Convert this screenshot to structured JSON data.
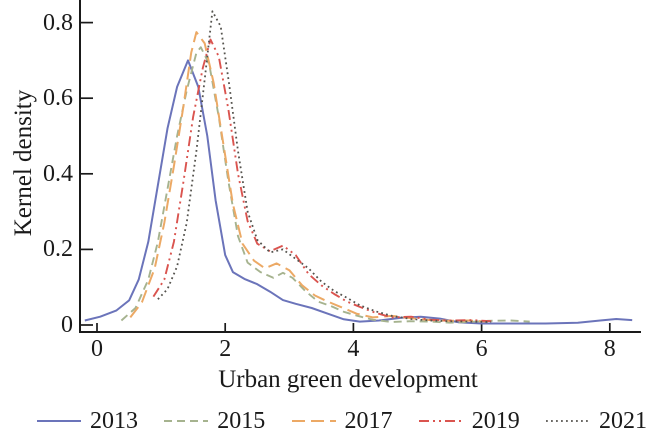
{
  "figure": {
    "background": "#ffffff"
  },
  "chart_data": {
    "type": "line",
    "title": "",
    "xlabel": "Urban green development",
    "ylabel": "Kernel density",
    "xlim": [
      -0.27,
      8.47
    ],
    "ylim": [
      0,
      0.86
    ],
    "grid": false,
    "legend_position": "bottom",
    "axis_color": "#1a1a1a",
    "xticks": [
      {
        "value": 0,
        "label": "0"
      },
      {
        "value": 2,
        "label": "2"
      },
      {
        "value": 4,
        "label": "4"
      },
      {
        "value": 6,
        "label": "6"
      },
      {
        "value": 8,
        "label": "8"
      }
    ],
    "yticks": [
      {
        "value": 0,
        "label": "0"
      },
      {
        "value": 0.2,
        "label": "0.2"
      },
      {
        "value": 0.4,
        "label": "0.4"
      },
      {
        "value": 0.6,
        "label": "0.6"
      },
      {
        "value": 0.8,
        "label": "0.8"
      }
    ],
    "series": [
      {
        "name": "2013",
        "color": "#6b74ba",
        "dash": "",
        "width": 2,
        "points": [
          [
            -0.19,
            0.012
          ],
          [
            0.05,
            0.022
          ],
          [
            0.3,
            0.038
          ],
          [
            0.5,
            0.065
          ],
          [
            0.65,
            0.12
          ],
          [
            0.8,
            0.22
          ],
          [
            0.95,
            0.37
          ],
          [
            1.1,
            0.52
          ],
          [
            1.25,
            0.63
          ],
          [
            1.42,
            0.7
          ],
          [
            1.58,
            0.63
          ],
          [
            1.72,
            0.5
          ],
          [
            1.85,
            0.33
          ],
          [
            2.0,
            0.185
          ],
          [
            2.12,
            0.14
          ],
          [
            2.3,
            0.122
          ],
          [
            2.5,
            0.108
          ],
          [
            2.7,
            0.088
          ],
          [
            2.9,
            0.066
          ],
          [
            3.1,
            0.056
          ],
          [
            3.35,
            0.045
          ],
          [
            3.6,
            0.03
          ],
          [
            3.85,
            0.015
          ],
          [
            4.1,
            0.009
          ],
          [
            4.4,
            0.012
          ],
          [
            4.75,
            0.019
          ],
          [
            5.05,
            0.022
          ],
          [
            5.35,
            0.017
          ],
          [
            5.65,
            0.007
          ],
          [
            6.0,
            0.004
          ],
          [
            6.5,
            0.004
          ],
          [
            7.0,
            0.004
          ],
          [
            7.5,
            0.006
          ],
          [
            7.85,
            0.012
          ],
          [
            8.1,
            0.016
          ],
          [
            8.35,
            0.013
          ]
        ]
      },
      {
        "name": "2015",
        "color": "#a6b38f",
        "dash": "8 5",
        "width": 1.9,
        "points": [
          [
            0.38,
            0.012
          ],
          [
            0.6,
            0.045
          ],
          [
            0.8,
            0.12
          ],
          [
            0.95,
            0.22
          ],
          [
            1.1,
            0.36
          ],
          [
            1.25,
            0.5
          ],
          [
            1.4,
            0.62
          ],
          [
            1.55,
            0.72
          ],
          [
            1.62,
            0.735
          ],
          [
            1.75,
            0.69
          ],
          [
            1.9,
            0.55
          ],
          [
            2.05,
            0.38
          ],
          [
            2.2,
            0.235
          ],
          [
            2.35,
            0.165
          ],
          [
            2.55,
            0.14
          ],
          [
            2.75,
            0.125
          ],
          [
            2.9,
            0.138
          ],
          [
            3.05,
            0.125
          ],
          [
            3.25,
            0.09
          ],
          [
            3.45,
            0.062
          ],
          [
            3.65,
            0.05
          ],
          [
            3.85,
            0.035
          ],
          [
            4.05,
            0.025
          ],
          [
            4.3,
            0.014
          ],
          [
            4.6,
            0.008
          ],
          [
            4.9,
            0.01
          ],
          [
            5.2,
            0.009
          ],
          [
            5.5,
            0.006
          ],
          [
            5.8,
            0.008
          ],
          [
            6.1,
            0.011
          ],
          [
            6.45,
            0.012
          ],
          [
            6.75,
            0.009
          ]
        ]
      },
      {
        "name": "2017",
        "color": "#eca965",
        "dash": "13 6",
        "width": 2,
        "points": [
          [
            0.52,
            0.02
          ],
          [
            0.7,
            0.06
          ],
          [
            0.9,
            0.15
          ],
          [
            1.05,
            0.27
          ],
          [
            1.2,
            0.42
          ],
          [
            1.35,
            0.58
          ],
          [
            1.47,
            0.72
          ],
          [
            1.55,
            0.775
          ],
          [
            1.68,
            0.745
          ],
          [
            1.82,
            0.64
          ],
          [
            1.97,
            0.48
          ],
          [
            2.12,
            0.32
          ],
          [
            2.27,
            0.215
          ],
          [
            2.45,
            0.17
          ],
          [
            2.62,
            0.15
          ],
          [
            2.8,
            0.163
          ],
          [
            3.0,
            0.145
          ],
          [
            3.2,
            0.105
          ],
          [
            3.4,
            0.078
          ],
          [
            3.6,
            0.062
          ],
          [
            3.8,
            0.048
          ],
          [
            4.05,
            0.03
          ],
          [
            4.3,
            0.02
          ],
          [
            4.6,
            0.024
          ],
          [
            4.9,
            0.018
          ],
          [
            5.2,
            0.013
          ],
          [
            5.5,
            0.011
          ],
          [
            5.8,
            0.012
          ],
          [
            6.1,
            0.009
          ]
        ]
      },
      {
        "name": "2019",
        "color": "#da544f",
        "dash": "10 4 2 4 2 4",
        "width": 1.9,
        "points": [
          [
            0.88,
            0.075
          ],
          [
            1.05,
            0.12
          ],
          [
            1.2,
            0.22
          ],
          [
            1.35,
            0.38
          ],
          [
            1.5,
            0.55
          ],
          [
            1.65,
            0.68
          ],
          [
            1.77,
            0.755
          ],
          [
            1.9,
            0.71
          ],
          [
            2.05,
            0.57
          ],
          [
            2.2,
            0.4
          ],
          [
            2.35,
            0.275
          ],
          [
            2.5,
            0.215
          ],
          [
            2.7,
            0.195
          ],
          [
            2.9,
            0.21
          ],
          [
            3.1,
            0.185
          ],
          [
            3.3,
            0.135
          ],
          [
            3.5,
            0.105
          ],
          [
            3.7,
            0.082
          ],
          [
            3.9,
            0.062
          ],
          [
            4.1,
            0.048
          ],
          [
            4.35,
            0.032
          ],
          [
            4.6,
            0.02
          ],
          [
            4.9,
            0.022
          ],
          [
            5.2,
            0.014
          ],
          [
            5.5,
            0.012
          ],
          [
            5.85,
            0.013
          ],
          [
            6.15,
            0.01
          ]
        ]
      },
      {
        "name": "2021",
        "color": "#55534e",
        "dash": "1.8 3.2",
        "width": 1.8,
        "points": [
          [
            0.95,
            0.068
          ],
          [
            1.1,
            0.095
          ],
          [
            1.25,
            0.155
          ],
          [
            1.4,
            0.27
          ],
          [
            1.55,
            0.46
          ],
          [
            1.68,
            0.65
          ],
          [
            1.8,
            0.83
          ],
          [
            1.93,
            0.79
          ],
          [
            2.06,
            0.64
          ],
          [
            2.2,
            0.46
          ],
          [
            2.35,
            0.3
          ],
          [
            2.5,
            0.225
          ],
          [
            2.7,
            0.192
          ],
          [
            2.9,
            0.2
          ],
          [
            3.1,
            0.175
          ],
          [
            3.3,
            0.15
          ],
          [
            3.5,
            0.115
          ],
          [
            3.7,
            0.09
          ],
          [
            3.9,
            0.072
          ],
          [
            4.1,
            0.052
          ],
          [
            4.35,
            0.036
          ],
          [
            4.6,
            0.024
          ],
          [
            4.9,
            0.016
          ],
          [
            5.2,
            0.012
          ],
          [
            5.5,
            0.01
          ],
          [
            5.85,
            0.009
          ],
          [
            6.15,
            0.008
          ]
        ]
      }
    ]
  }
}
